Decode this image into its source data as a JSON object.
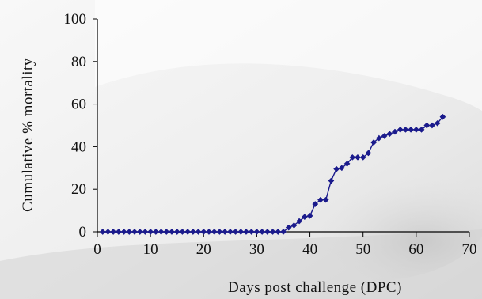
{
  "chart_data": {
    "type": "line",
    "title": "",
    "xlabel": "Days post challenge (DPC)",
    "ylabel": "Cumulative % mortality",
    "xlim": [
      0,
      70
    ],
    "ylim": [
      0,
      100
    ],
    "xticks": [
      "0",
      "10",
      "20",
      "30",
      "40",
      "50",
      "60",
      "70"
    ],
    "yticks": [
      "0",
      "20",
      "40",
      "60",
      "80",
      "100"
    ],
    "grid": false,
    "legend": "none",
    "series_color": "#1a1a8c",
    "marker": "diamond",
    "series": [
      {
        "x": [
          1,
          2,
          3,
          4,
          5,
          6,
          7,
          8,
          9,
          10,
          11,
          12,
          13,
          14,
          15,
          16,
          17,
          18,
          19,
          20,
          21,
          22,
          23,
          24,
          25,
          26,
          27,
          28,
          29,
          30,
          31,
          32,
          33,
          34,
          35,
          36,
          37,
          38,
          39,
          40,
          41,
          42,
          43,
          44,
          45,
          46,
          47,
          48,
          49,
          50,
          51,
          52,
          53,
          54,
          55,
          56,
          57,
          58,
          59,
          60,
          61,
          62,
          63,
          64,
          65
        ],
        "y": [
          0,
          0,
          0,
          0,
          0,
          0,
          0,
          0,
          0,
          0,
          0,
          0,
          0,
          0,
          0,
          0,
          0,
          0,
          0,
          0,
          0,
          0,
          0,
          0,
          0,
          0,
          0,
          0,
          0,
          0,
          0,
          0,
          0,
          0,
          0,
          2,
          3,
          5,
          7,
          7.5,
          13,
          15,
          15,
          24,
          29.5,
          30,
          32,
          35,
          35,
          35,
          37,
          42,
          44,
          45,
          46,
          47,
          48,
          48,
          48,
          48,
          48,
          50,
          50,
          51,
          54
        ]
      }
    ]
  }
}
